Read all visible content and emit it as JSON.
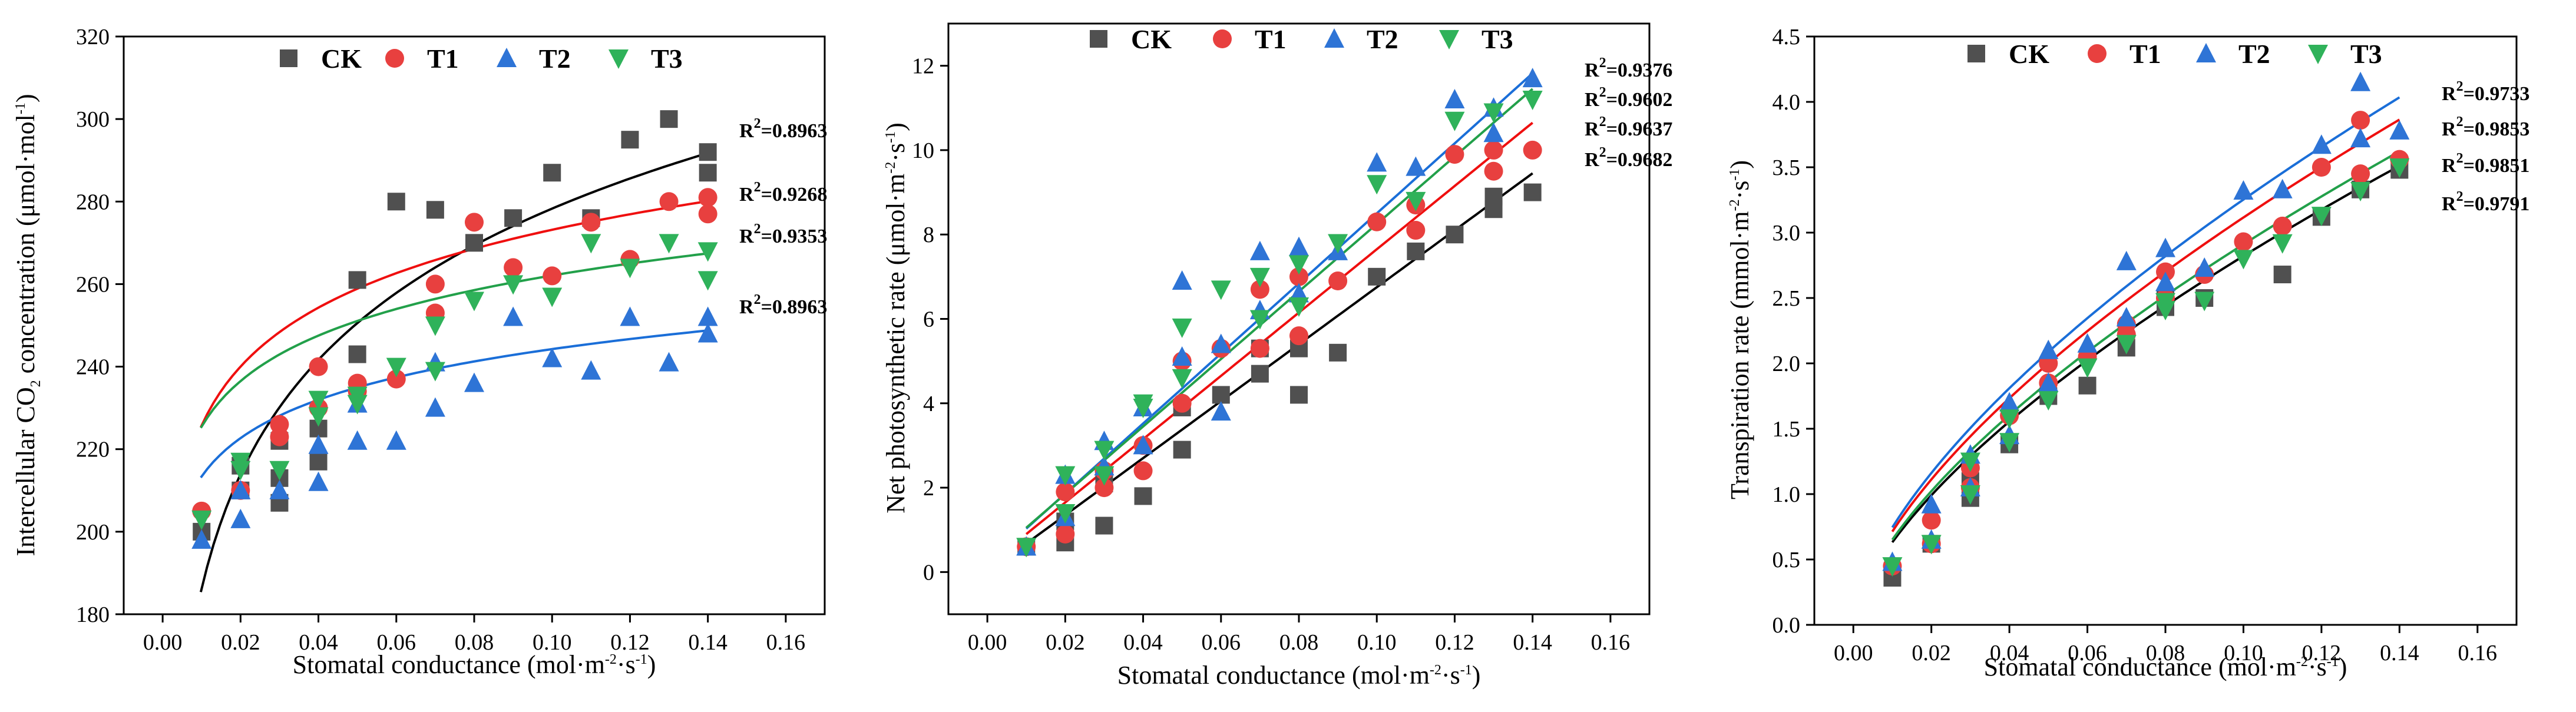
{
  "colors": {
    "CK": "#505050",
    "T1": "#e8403f",
    "T2": "#2e74d6",
    "T3": "#2fb25a",
    "CK_fit": "#000000",
    "T1_fit": "#ef0f0f",
    "T2_fit": "#1a6ed8",
    "T3_fit": "#22a04a"
  },
  "chart_data": [
    {
      "id": "ci",
      "type": "scatter",
      "title": "",
      "xlabel": "Stomatal conductance (mol·m⁻²·s⁻¹)",
      "ylabel": "Intercellular CO₂ concentration (μmol·mol⁻¹)",
      "xlim": [
        -0.01,
        0.17
      ],
      "ylim": [
        180,
        320
      ],
      "xticks": [
        "0.00",
        "0.02",
        "0.04",
        "0.06",
        "0.08",
        "0.10",
        "0.12",
        "0.14",
        "0.16"
      ],
      "yticks": [
        "180",
        "200",
        "220",
        "240",
        "260",
        "280",
        "300",
        "320"
      ],
      "legend": {
        "position": "top",
        "labels": [
          "CK",
          "T1",
          "T2",
          "T3"
        ]
      },
      "r2_labels": [
        "R²=0.8963",
        "R²=0.9268",
        "R²=0.9353",
        "R²=0.8963"
      ],
      "series": [
        {
          "name": "CK",
          "marker": "square",
          "x": [
            0.01,
            0.02,
            0.02,
            0.03,
            0.03,
            0.03,
            0.04,
            0.04,
            0.05,
            0.05,
            0.06,
            0.07,
            0.08,
            0.09,
            0.1,
            0.11,
            0.12,
            0.13,
            0.14,
            0.14
          ],
          "y": [
            200,
            216,
            210,
            222,
            213,
            207,
            225,
            217,
            261,
            243,
            280,
            278,
            270,
            276,
            287,
            276,
            295,
            300,
            292,
            287
          ],
          "fit": {
            "form": "log",
            "a": 370.4,
            "b": 40.0,
            "range": [
              0.0098,
              0.14
            ]
          }
        },
        {
          "name": "T1",
          "marker": "circle",
          "x": [
            0.01,
            0.02,
            0.03,
            0.03,
            0.04,
            0.04,
            0.05,
            0.05,
            0.06,
            0.07,
            0.07,
            0.08,
            0.09,
            0.1,
            0.11,
            0.12,
            0.13,
            0.14,
            0.14
          ],
          "y": [
            205,
            210,
            226,
            223,
            240,
            230,
            234,
            236,
            237,
            260,
            253,
            275,
            264,
            262,
            275,
            266,
            280,
            281,
            277
          ],
          "fit": {
            "form": "log",
            "a": 320.6,
            "b": 20.6,
            "range": [
              0.0098,
              0.14
            ]
          }
        },
        {
          "name": "T2",
          "marker": "triangle",
          "x": [
            0.01,
            0.02,
            0.02,
            0.03,
            0.04,
            0.04,
            0.05,
            0.05,
            0.06,
            0.07,
            0.07,
            0.08,
            0.09,
            0.1,
            0.11,
            0.12,
            0.13,
            0.14,
            0.14
          ],
          "y": [
            198,
            203,
            210,
            210,
            212,
            221,
            222,
            231,
            222,
            230,
            241,
            236,
            252,
            242,
            239,
            252,
            241,
            252,
            248
          ],
          "fit": {
            "form": "log",
            "a": 275.1,
            "b": 13.4,
            "range": [
              0.0098,
              0.14
            ]
          }
        },
        {
          "name": "T3",
          "marker": "triangle-down",
          "x": [
            0.01,
            0.02,
            0.02,
            0.03,
            0.04,
            0.04,
            0.05,
            0.05,
            0.06,
            0.07,
            0.07,
            0.08,
            0.09,
            0.1,
            0.11,
            0.12,
            0.13,
            0.14,
            0.14
          ],
          "y": [
            203,
            217,
            215,
            215,
            232,
            228,
            231,
            233,
            240,
            239,
            250,
            256,
            260,
            257,
            270,
            264,
            270,
            261,
            268
          ],
          "fit": {
            "form": "log",
            "a": 298.7,
            "b": 15.9,
            "range": [
              0.0098,
              0.14
            ]
          }
        }
      ]
    },
    {
      "id": "pn",
      "type": "scatter",
      "title": "",
      "xlabel": "Stomatal conductance (mol·m⁻²·s⁻¹)",
      "ylabel": "Net photosynthetic rate (μmol·m⁻²·s⁻¹)",
      "xlim": [
        -0.01,
        0.17
      ],
      "ylim": [
        -1,
        13
      ],
      "xticks": [
        "0.00",
        "0.02",
        "0.04",
        "0.06",
        "0.08",
        "0.10",
        "0.12",
        "0.14",
        "0.16"
      ],
      "yticks": [
        "0",
        "2",
        "4",
        "6",
        "8",
        "10",
        "12"
      ],
      "legend": {
        "position": "top",
        "labels": [
          "CK",
          "T1",
          "T2",
          "T3"
        ]
      },
      "r2_labels": [
        "R²=0.9376",
        "R²=0.9602",
        "R²=0.9637",
        "R²=0.9682"
      ],
      "series": [
        {
          "name": "CK",
          "marker": "square",
          "x": [
            0.01,
            0.02,
            0.02,
            0.03,
            0.03,
            0.04,
            0.05,
            0.05,
            0.06,
            0.07,
            0.07,
            0.08,
            0.08,
            0.09,
            0.1,
            0.11,
            0.12,
            0.13,
            0.13,
            0.14
          ],
          "y": [
            0.6,
            0.7,
            1.2,
            1.1,
            2.1,
            1.8,
            2.9,
            3.9,
            4.2,
            4.7,
            5.3,
            4.2,
            5.3,
            5.2,
            7.0,
            7.6,
            8.0,
            8.6,
            8.9,
            9.0
          ],
          "fit": {
            "form": "linear",
            "a": 0.0,
            "b": 67.5,
            "range": [
              0.01,
              0.14
            ]
          }
        },
        {
          "name": "T1",
          "marker": "circle",
          "x": [
            0.01,
            0.02,
            0.02,
            0.03,
            0.03,
            0.04,
            0.04,
            0.05,
            0.05,
            0.06,
            0.07,
            0.07,
            0.08,
            0.08,
            0.09,
            0.1,
            0.11,
            0.11,
            0.12,
            0.13,
            0.13,
            0.14
          ],
          "y": [
            0.6,
            0.9,
            1.9,
            2.0,
            2.4,
            3.0,
            2.4,
            4.0,
            5.0,
            5.3,
            5.3,
            6.7,
            5.6,
            7.0,
            6.9,
            8.3,
            8.1,
            8.7,
            9.9,
            9.5,
            10.0,
            10.0
          ],
          "fit": {
            "form": "linear",
            "a": 0.15,
            "b": 75.0,
            "range": [
              0.01,
              0.14
            ]
          }
        },
        {
          "name": "T2",
          "marker": "triangle",
          "x": [
            0.01,
            0.02,
            0.02,
            0.03,
            0.03,
            0.04,
            0.04,
            0.05,
            0.05,
            0.06,
            0.06,
            0.07,
            0.07,
            0.08,
            0.08,
            0.09,
            0.1,
            0.11,
            0.12,
            0.13,
            0.13,
            0.14
          ],
          "y": [
            0.6,
            1.3,
            2.3,
            3.1,
            2.5,
            3.9,
            3.0,
            6.9,
            5.1,
            5.4,
            3.8,
            7.6,
            6.2,
            7.7,
            6.6,
            7.6,
            9.7,
            9.6,
            11.2,
            11.0,
            10.4,
            11.7
          ],
          "fit": {
            "form": "linear",
            "a": 0.2,
            "b": 83.0,
            "range": [
              0.01,
              0.14
            ]
          }
        },
        {
          "name": "T3",
          "marker": "triangle-down",
          "x": [
            0.01,
            0.02,
            0.02,
            0.03,
            0.03,
            0.04,
            0.04,
            0.05,
            0.05,
            0.06,
            0.07,
            0.07,
            0.08,
            0.08,
            0.09,
            0.1,
            0.11,
            0.12,
            0.13,
            0.14
          ],
          "y": [
            0.6,
            2.3,
            1.4,
            2.9,
            2.3,
            4.0,
            3.9,
            5.8,
            4.6,
            6.7,
            6.0,
            7.0,
            7.3,
            6.3,
            7.8,
            9.2,
            8.8,
            10.7,
            10.9,
            11.2
          ],
          "fit": {
            "form": "linear",
            "a": 0.25,
            "b": 80.0,
            "range": [
              0.01,
              0.14
            ]
          }
        }
      ]
    },
    {
      "id": "tr",
      "type": "scatter",
      "title": "",
      "xlabel": "Stomatal conductance (mol·m⁻²·s⁻¹)",
      "ylabel": "Transpiration rate (mmol·m⁻²·s⁻¹)",
      "xlim": [
        -0.01,
        0.17
      ],
      "ylim": [
        0.0,
        4.5
      ],
      "xticks": [
        "0.00",
        "0.02",
        "0.04",
        "0.06",
        "0.08",
        "0.10",
        "0.12",
        "0.14",
        "0.16"
      ],
      "yticks": [
        "0.0",
        "0.5",
        "1.0",
        "1.5",
        "2.0",
        "2.5",
        "3.0",
        "3.5",
        "4.0",
        "4.5"
      ],
      "legend": {
        "position": "top",
        "labels": [
          "CK",
          "T1",
          "T2",
          "T3"
        ]
      },
      "r2_labels": [
        "R²=0.9733",
        "R²=0.9853",
        "R²=0.9851",
        "R²=0.9791"
      ],
      "series": [
        {
          "name": "CK",
          "marker": "square",
          "x": [
            0.01,
            0.02,
            0.03,
            0.03,
            0.04,
            0.05,
            0.06,
            0.07,
            0.08,
            0.08,
            0.09,
            0.11,
            0.12,
            0.13,
            0.14
          ],
          "y": [
            0.36,
            0.62,
            0.97,
            1.1,
            1.38,
            1.75,
            1.83,
            2.12,
            2.43,
            2.5,
            2.5,
            2.68,
            3.12,
            3.33,
            3.48
          ],
          "fit": {
            "form": "power",
            "a": 12.6,
            "b": 0.65,
            "range": [
              0.01,
              0.14
            ]
          }
        },
        {
          "name": "T1",
          "marker": "circle",
          "x": [
            0.01,
            0.02,
            0.02,
            0.03,
            0.03,
            0.04,
            0.05,
            0.05,
            0.06,
            0.07,
            0.07,
            0.08,
            0.08,
            0.09,
            0.1,
            0.11,
            0.12,
            0.13,
            0.13,
            0.14
          ],
          "y": [
            0.45,
            0.62,
            0.8,
            1.2,
            1.05,
            1.6,
            1.85,
            2.0,
            2.05,
            2.22,
            2.3,
            2.7,
            2.5,
            2.68,
            2.93,
            3.05,
            3.5,
            3.86,
            3.45,
            3.56
          ],
          "fit": {
            "form": "power",
            "a": 13.6,
            "b": 0.64,
            "range": [
              0.01,
              0.14
            ]
          }
        },
        {
          "name": "T2",
          "marker": "triangle",
          "x": [
            0.01,
            0.02,
            0.02,
            0.03,
            0.03,
            0.04,
            0.04,
            0.05,
            0.05,
            0.06,
            0.07,
            0.07,
            0.08,
            0.08,
            0.09,
            0.1,
            0.11,
            0.12,
            0.13,
            0.13,
            0.14
          ],
          "y": [
            0.48,
            0.92,
            0.65,
            1.3,
            1.05,
            1.7,
            1.45,
            2.1,
            1.85,
            2.15,
            2.78,
            2.35,
            2.88,
            2.62,
            2.73,
            3.32,
            3.33,
            3.67,
            4.15,
            3.72,
            3.78
          ],
          "fit": {
            "form": "power",
            "a": 14.2,
            "b": 0.64,
            "range": [
              0.01,
              0.14
            ]
          }
        },
        {
          "name": "T3",
          "marker": "triangle-down",
          "x": [
            0.01,
            0.02,
            0.03,
            0.03,
            0.04,
            0.04,
            0.05,
            0.06,
            0.07,
            0.08,
            0.08,
            0.09,
            0.1,
            0.11,
            0.12,
            0.13,
            0.14
          ],
          "y": [
            0.45,
            0.62,
            1.25,
            1.0,
            1.58,
            1.4,
            1.72,
            1.97,
            2.15,
            2.41,
            2.47,
            2.48,
            2.8,
            2.92,
            3.13,
            3.32,
            3.5
          ],
          "fit": {
            "form": "power",
            "a": 13.0,
            "b": 0.65,
            "range": [
              0.01,
              0.14
            ]
          }
        }
      ]
    }
  ]
}
